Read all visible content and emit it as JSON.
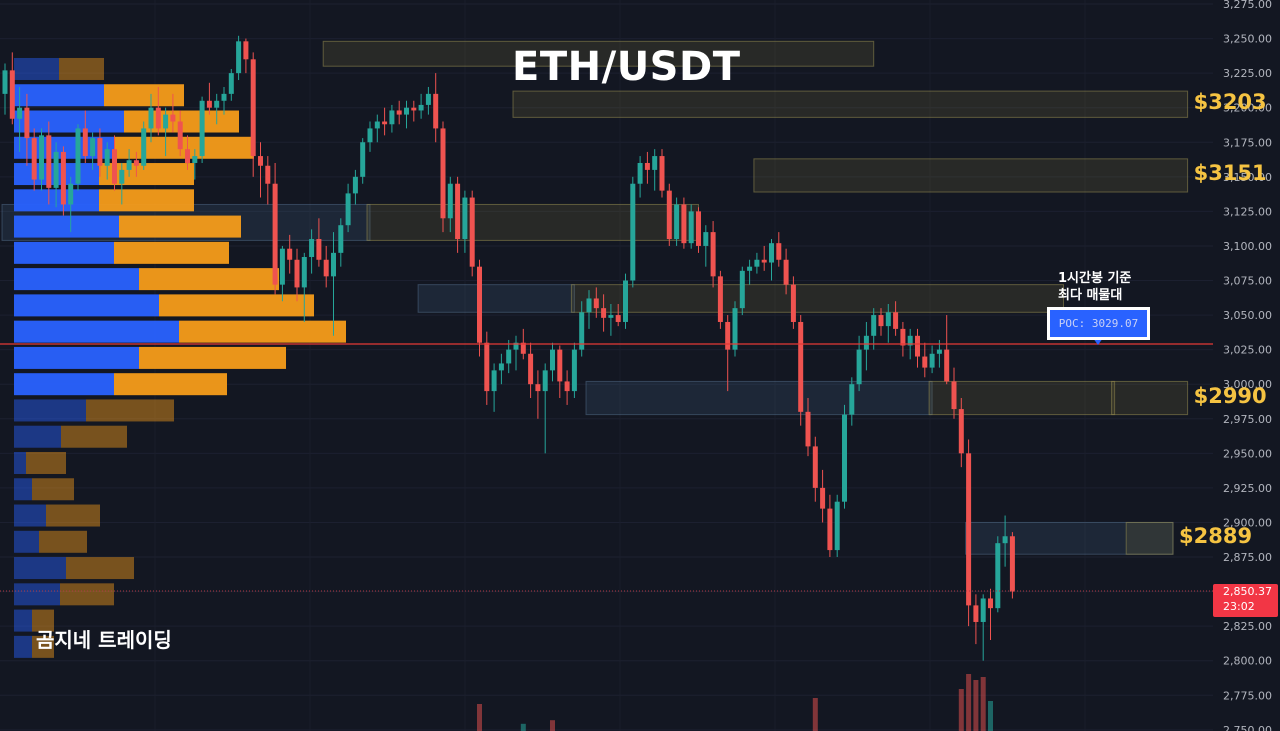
{
  "title": "ETH/USDT",
  "brand": "곰지네 트레이딩",
  "poc": {
    "note_line1": "1시간봉 기준",
    "note_line2": "최다 매물대",
    "label": "POC: 3029.07",
    "value": 3029.07,
    "line_color": "#e53935"
  },
  "last_price": {
    "value": "2,850.37",
    "countdown": "23:02",
    "numeric": 2850.37,
    "color": "#f23645"
  },
  "colors": {
    "background": "#131722",
    "up": "#26a69a",
    "down": "#ef5350",
    "vp_buy": "#2962ff",
    "vp_sell": "#f59c1a",
    "zone_label": "#f5c342",
    "axis_text": "#b2b5be"
  },
  "chart_data": {
    "type": "candlestick",
    "symbol": "ETH/USDT",
    "ylim": [
      2750,
      3275
    ],
    "y_ticks": [
      3275,
      3250,
      3225,
      3200,
      3175,
      3150,
      3125,
      3100,
      3075,
      3050,
      3025,
      3000,
      2975,
      2950,
      2925,
      2900,
      2875,
      2850,
      2825,
      2800,
      2775,
      2750
    ],
    "y_tick_labels": [
      "3,275.00",
      "3,250.00",
      "3,225.00",
      "3,200.00",
      "3,175.00",
      "3,150.00",
      "3,125.00",
      "3,100.00",
      "3,075.00",
      "3,050.00",
      "3,025.00",
      "3,000.00",
      "2,975.00",
      "2,950.00",
      "2,925.00",
      "2,900.00",
      "2,875.00",
      "2,850.00",
      "2,825.00",
      "2,800.00",
      "2,775.00",
      "2,750.00"
    ],
    "zones": [
      {
        "top": 3248,
        "bottom": 3230,
        "start": 44,
        "end": 119,
        "label": "",
        "tone": "orange"
      },
      {
        "top": 3212,
        "bottom": 3193,
        "start": 70,
        "end": 162,
        "label": "$3203",
        "tone": "orange"
      },
      {
        "top": 3163,
        "bottom": 3139,
        "start": 103,
        "end": 162,
        "label": "$3151",
        "tone": "orange"
      },
      {
        "top": 3130,
        "bottom": 3104,
        "start": 0,
        "end": 50,
        "label": "",
        "tone": "blue"
      },
      {
        "top": 3130,
        "bottom": 3104,
        "start": 50,
        "end": 95,
        "label": "",
        "tone": "orange"
      },
      {
        "top": 3072,
        "bottom": 3052,
        "start": 57,
        "end": 78,
        "label": "",
        "tone": "blue"
      },
      {
        "top": 3072,
        "bottom": 3052,
        "start": 78,
        "end": 145,
        "label": "",
        "tone": "orange"
      },
      {
        "top": 3002,
        "bottom": 2978,
        "start": 80,
        "end": 127,
        "label": "",
        "tone": "blue"
      },
      {
        "top": 3002,
        "bottom": 2978,
        "start": 127,
        "end": 152,
        "label": "",
        "tone": "orange"
      },
      {
        "top": 3002,
        "bottom": 2978,
        "start": 152,
        "end": 162,
        "label": "$2990",
        "tone": "orange"
      },
      {
        "top": 2900,
        "bottom": 2877,
        "start": 132,
        "end": 160,
        "label": "",
        "tone": "blue"
      },
      {
        "top": 2900,
        "bottom": 2877,
        "start": 154,
        "end": 160,
        "label": "$2889",
        "tone": "orange"
      }
    ],
    "volume_profile": [
      {
        "price": 3228,
        "buy": 45,
        "sell": 45
      },
      {
        "price": 3209,
        "buy": 90,
        "sell": 80
      },
      {
        "price": 3190,
        "buy": 110,
        "sell": 115
      },
      {
        "price": 3171,
        "buy": 100,
        "sell": 140
      },
      {
        "price": 3152,
        "buy": 85,
        "sell": 95
      },
      {
        "price": 3133,
        "buy": 85,
        "sell": 95
      },
      {
        "price": 3114,
        "buy": 105,
        "sell": 122
      },
      {
        "price": 3095,
        "buy": 100,
        "sell": 115
      },
      {
        "price": 3076,
        "buy": 125,
        "sell": 140
      },
      {
        "price": 3057,
        "buy": 145,
        "sell": 155
      },
      {
        "price": 3038,
        "buy": 165,
        "sell": 167
      },
      {
        "price": 3019,
        "buy": 125,
        "sell": 147
      },
      {
        "price": 3000,
        "buy": 100,
        "sell": 113
      },
      {
        "price": 2981,
        "buy": 72,
        "sell": 88
      },
      {
        "price": 2962,
        "buy": 47,
        "sell": 66
      },
      {
        "price": 2943,
        "buy": 12,
        "sell": 40
      },
      {
        "price": 2924,
        "buy": 18,
        "sell": 42
      },
      {
        "price": 2905,
        "buy": 32,
        "sell": 54
      },
      {
        "price": 2886,
        "buy": 25,
        "sell": 48
      },
      {
        "price": 2867,
        "buy": 52,
        "sell": 68
      },
      {
        "price": 2848,
        "buy": 46,
        "sell": 54
      },
      {
        "price": 2829,
        "buy": 18,
        "sell": 22
      },
      {
        "price": 2810,
        "buy": 18,
        "sell": 22
      }
    ],
    "candles": [
      [
        3210,
        3232,
        3195,
        3227
      ],
      [
        3227,
        3240,
        3188,
        3192
      ],
      [
        3192,
        3215,
        3168,
        3200
      ],
      [
        3200,
        3210,
        3158,
        3178
      ],
      [
        3178,
        3185,
        3140,
        3148
      ],
      [
        3148,
        3185,
        3140,
        3180
      ],
      [
        3180,
        3190,
        3130,
        3142
      ],
      [
        3142,
        3175,
        3128,
        3168
      ],
      [
        3168,
        3172,
        3122,
        3130
      ],
      [
        3130,
        3150,
        3110,
        3145
      ],
      [
        3145,
        3188,
        3140,
        3185
      ],
      [
        3185,
        3198,
        3160,
        3165
      ],
      [
        3165,
        3182,
        3155,
        3178
      ],
      [
        3178,
        3185,
        3150,
        3158
      ],
      [
        3158,
        3175,
        3148,
        3170
      ],
      [
        3170,
        3180,
        3140,
        3145
      ],
      [
        3145,
        3160,
        3130,
        3155
      ],
      [
        3155,
        3170,
        3150,
        3162
      ],
      [
        3162,
        3168,
        3150,
        3158
      ],
      [
        3158,
        3190,
        3155,
        3185
      ],
      [
        3185,
        3210,
        3175,
        3200
      ],
      [
        3200,
        3215,
        3180,
        3185
      ],
      [
        3185,
        3200,
        3165,
        3195
      ],
      [
        3195,
        3210,
        3182,
        3190
      ],
      [
        3190,
        3198,
        3165,
        3170
      ],
      [
        3170,
        3180,
        3155,
        3160
      ],
      [
        3160,
        3170,
        3148,
        3165
      ],
      [
        3165,
        3208,
        3160,
        3205
      ],
      [
        3205,
        3218,
        3195,
        3200
      ],
      [
        3200,
        3210,
        3188,
        3205
      ],
      [
        3205,
        3215,
        3195,
        3210
      ],
      [
        3210,
        3228,
        3205,
        3225
      ],
      [
        3225,
        3252,
        3220,
        3248
      ],
      [
        3248,
        3250,
        3225,
        3235
      ],
      [
        3235,
        3240,
        3150,
        3165
      ],
      [
        3165,
        3175,
        3135,
        3158
      ],
      [
        3158,
        3165,
        3130,
        3145
      ],
      [
        3145,
        3160,
        3065,
        3072
      ],
      [
        3072,
        3100,
        3060,
        3098
      ],
      [
        3098,
        3108,
        3080,
        3090
      ],
      [
        3090,
        3098,
        3060,
        3070
      ],
      [
        3070,
        3095,
        3045,
        3092
      ],
      [
        3092,
        3112,
        3080,
        3105
      ],
      [
        3105,
        3120,
        3085,
        3090
      ],
      [
        3090,
        3100,
        3070,
        3078
      ],
      [
        3078,
        3110,
        3035,
        3095
      ],
      [
        3095,
        3120,
        3085,
        3115
      ],
      [
        3115,
        3145,
        3110,
        3138
      ],
      [
        3138,
        3155,
        3130,
        3150
      ],
      [
        3150,
        3178,
        3145,
        3175
      ],
      [
        3175,
        3190,
        3168,
        3185
      ],
      [
        3185,
        3195,
        3175,
        3190
      ],
      [
        3190,
        3200,
        3180,
        3188
      ],
      [
        3188,
        3202,
        3182,
        3198
      ],
      [
        3198,
        3205,
        3188,
        3195
      ],
      [
        3195,
        3205,
        3185,
        3200
      ],
      [
        3200,
        3205,
        3190,
        3198
      ],
      [
        3198,
        3210,
        3192,
        3202
      ],
      [
        3202,
        3215,
        3195,
        3210
      ],
      [
        3210,
        3225,
        3175,
        3185
      ],
      [
        3185,
        3190,
        3110,
        3120
      ],
      [
        3120,
        3150,
        3110,
        3145
      ],
      [
        3145,
        3150,
        3095,
        3105
      ],
      [
        3105,
        3140,
        3095,
        3135
      ],
      [
        3135,
        3140,
        3078,
        3085
      ],
      [
        3085,
        3090,
        3020,
        3030
      ],
      [
        3030,
        3038,
        2985,
        2995
      ],
      [
        2995,
        3015,
        2980,
        3010
      ],
      [
        3010,
        3022,
        3000,
        3015
      ],
      [
        3015,
        3032,
        3008,
        3025
      ],
      [
        3025,
        3035,
        3010,
        3030
      ],
      [
        3030,
        3040,
        3018,
        3022
      ],
      [
        3022,
        3030,
        2990,
        3000
      ],
      [
        3000,
        3010,
        2975,
        2995
      ],
      [
        2995,
        3015,
        2950,
        3010
      ],
      [
        3010,
        3030,
        3002,
        3025
      ],
      [
        3025,
        3028,
        2990,
        3002
      ],
      [
        3002,
        3010,
        2985,
        2995
      ],
      [
        2995,
        3030,
        2990,
        3025
      ],
      [
        3025,
        3060,
        3020,
        3052
      ],
      [
        3052,
        3068,
        3040,
        3062
      ],
      [
        3062,
        3070,
        3048,
        3055
      ],
      [
        3055,
        3065,
        3038,
        3048
      ],
      [
        3048,
        3058,
        3035,
        3050
      ],
      [
        3050,
        3058,
        3042,
        3045
      ],
      [
        3045,
        3080,
        3040,
        3075
      ],
      [
        3075,
        3150,
        3070,
        3145
      ],
      [
        3145,
        3165,
        3135,
        3160
      ],
      [
        3160,
        3168,
        3145,
        3155
      ],
      [
        3155,
        3170,
        3140,
        3165
      ],
      [
        3165,
        3170,
        3135,
        3140
      ],
      [
        3140,
        3145,
        3100,
        3105
      ],
      [
        3105,
        3135,
        3100,
        3130
      ],
      [
        3130,
        3135,
        3098,
        3102
      ],
      [
        3102,
        3130,
        3098,
        3125
      ],
      [
        3125,
        3128,
        3095,
        3100
      ],
      [
        3100,
        3115,
        3085,
        3110
      ],
      [
        3110,
        3118,
        3070,
        3078
      ],
      [
        3078,
        3082,
        3040,
        3045
      ],
      [
        3045,
        3050,
        2995,
        3025
      ],
      [
        3025,
        3060,
        3020,
        3055
      ],
      [
        3055,
        3085,
        3050,
        3082
      ],
      [
        3082,
        3090,
        3072,
        3085
      ],
      [
        3085,
        3095,
        3080,
        3090
      ],
      [
        3090,
        3100,
        3082,
        3088
      ],
      [
        3088,
        3105,
        3075,
        3102
      ],
      [
        3102,
        3110,
        3085,
        3090
      ],
      [
        3090,
        3098,
        3065,
        3072
      ],
      [
        3072,
        3078,
        3040,
        3045
      ],
      [
        3045,
        3050,
        2970,
        2980
      ],
      [
        2980,
        2990,
        2948,
        2955
      ],
      [
        2955,
        2962,
        2915,
        2925
      ],
      [
        2925,
        2938,
        2900,
        2910
      ],
      [
        2910,
        2920,
        2875,
        2880
      ],
      [
        2880,
        2920,
        2875,
        2915
      ],
      [
        2915,
        2985,
        2910,
        2978
      ],
      [
        2978,
        3005,
        2970,
        3000
      ],
      [
        3000,
        3035,
        2995,
        3025
      ],
      [
        3025,
        3045,
        3010,
        3035
      ],
      [
        3035,
        3055,
        3025,
        3050
      ],
      [
        3050,
        3055,
        3035,
        3042
      ],
      [
        3042,
        3058,
        3030,
        3052
      ],
      [
        3052,
        3060,
        3035,
        3040
      ],
      [
        3040,
        3045,
        3020,
        3028
      ],
      [
        3028,
        3040,
        3018,
        3035
      ],
      [
        3035,
        3040,
        3012,
        3020
      ],
      [
        3020,
        3030,
        3005,
        3012
      ],
      [
        3012,
        3028,
        3008,
        3022
      ],
      [
        3022,
        3032,
        3012,
        3025
      ],
      [
        3025,
        3050,
        3000,
        3002
      ],
      [
        3002,
        3012,
        2975,
        2982
      ],
      [
        2982,
        2990,
        2940,
        2950
      ],
      [
        2950,
        2960,
        2825,
        2840
      ],
      [
        2840,
        2848,
        2812,
        2828
      ],
      [
        2828,
        2848,
        2800,
        2845
      ],
      [
        2845,
        2852,
        2815,
        2838
      ],
      [
        2838,
        2890,
        2835,
        2885
      ],
      [
        2885,
        2905,
        2868,
        2890
      ],
      [
        2890,
        2893,
        2845,
        2850
      ]
    ],
    "volume": [
      {
        "index": 65,
        "value": 0.45,
        "dir": "down"
      },
      {
        "index": 71,
        "value": 0.12,
        "dir": "up"
      },
      {
        "index": 75,
        "value": 0.18,
        "dir": "down"
      },
      {
        "index": 111,
        "value": 0.55,
        "dir": "down"
      },
      {
        "index": 131,
        "value": 0.7,
        "dir": "down"
      },
      {
        "index": 132,
        "value": 0.95,
        "dir": "down"
      },
      {
        "index": 133,
        "value": 0.85,
        "dir": "down"
      },
      {
        "index": 134,
        "value": 0.9,
        "dir": "down"
      },
      {
        "index": 135,
        "value": 0.5,
        "dir": "up"
      }
    ]
  }
}
